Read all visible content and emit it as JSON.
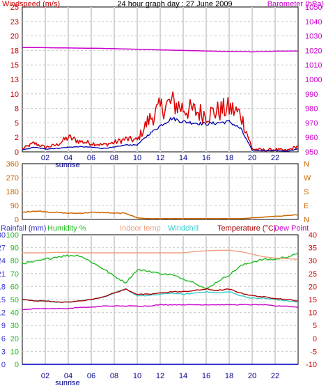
{
  "header": {
    "title": "24 hour graph day : 27 June 2009",
    "left_title": "Windspeed (m/s)",
    "right_title": "Barometer (hPa)"
  },
  "x_axis": {
    "labels": [
      "02",
      "04",
      "06",
      "08",
      "10",
      "12",
      "14",
      "16",
      "18",
      "20",
      "22"
    ],
    "sunrise_label": "sunrise"
  },
  "colors": {
    "windspeed": "#dd0000",
    "wind_avg": "#0000aa",
    "barometer": "#cc00cc",
    "direction": "#cc6600",
    "rainfall": "#3333cc",
    "humidity": "#22bb22",
    "indoor_temp": "#f0a080",
    "windchill": "#33cccc",
    "temperature": "#aa0000",
    "dew_point": "#cc00cc"
  },
  "panels": {
    "wind": {
      "left_ticks": [
        "0",
        "2",
        "5",
        "8",
        "10",
        "13",
        "15",
        "18",
        "20",
        "23",
        "25"
      ],
      "right_ticks": [
        "950",
        "960",
        "970",
        "980",
        "990",
        "1000",
        "1010",
        "1020",
        "1030",
        "1040",
        "1050"
      ]
    },
    "direction": {
      "left_ticks": [
        "0",
        "90",
        "180",
        "270",
        "360"
      ],
      "right_ticks": [
        "N",
        "E",
        "S",
        "W",
        "N"
      ]
    },
    "temp": {
      "legend": {
        "rainfall": "Rainfall (mm)",
        "humidity": "Humidity %",
        "indoor": "Indoor temp",
        "windchill": "Windchill",
        "temperature": "Temperature (°C)",
        "dewpoint": "Dew Point"
      },
      "rain_ticks": [
        "0",
        "3",
        "6",
        "9",
        "12",
        "15",
        "18",
        "21",
        "24",
        "27",
        "30"
      ],
      "hum_ticks": [
        "0",
        "10",
        "20",
        "30",
        "40",
        "50",
        "60",
        "70",
        "80",
        "90",
        "100"
      ],
      "temp_ticks": [
        "-10",
        "-5",
        "0",
        "5",
        "10",
        "15",
        "20",
        "25",
        "30",
        "35",
        "40"
      ]
    }
  },
  "chart_data": [
    {
      "type": "line",
      "title": "24 hour graph day : 27 June 2009",
      "x": [
        0,
        1,
        2,
        3,
        4,
        5,
        6,
        7,
        8,
        9,
        10,
        11,
        12,
        13,
        14,
        15,
        16,
        17,
        18,
        19,
        20,
        21,
        22,
        23,
        24
      ],
      "ylabel": "Windspeed (m/s)",
      "ylabel_right": "Barometer (hPa)",
      "ylim": [
        0,
        25
      ],
      "ylim_right": [
        950,
        1050
      ],
      "series": [
        {
          "name": "Windspeed (m/s)",
          "axis": "left",
          "color": "#dd0000",
          "values": [
            0.5,
            1.5,
            0.8,
            1.2,
            2.5,
            1.8,
            1.5,
            1.2,
            1.6,
            2.2,
            2.0,
            5.5,
            7.5,
            8.5,
            7.5,
            7.0,
            6.5,
            7.0,
            7.5,
            6.5,
            0.5,
            0.3,
            0.4,
            0.2,
            1.0
          ]
        },
        {
          "name": "Windspeed average",
          "axis": "left",
          "color": "#0000aa",
          "values": [
            0.3,
            0.8,
            0.5,
            0.6,
            0.8,
            0.9,
            0.8,
            0.6,
            0.8,
            1.2,
            1.2,
            3.0,
            4.5,
            5.8,
            5.2,
            5.0,
            4.8,
            5.0,
            5.2,
            4.0,
            0.3,
            0.2,
            0.2,
            0.1,
            0.5
          ]
        },
        {
          "name": "Barometer (hPa)",
          "axis": "right",
          "color": "#cc00cc",
          "values": [
            1022.0,
            1022.0,
            1021.9,
            1021.8,
            1021.7,
            1021.6,
            1021.5,
            1021.4,
            1021.2,
            1021.0,
            1020.8,
            1020.6,
            1020.4,
            1020.2,
            1020.0,
            1019.8,
            1019.6,
            1019.4,
            1019.3,
            1019.2,
            1019.0,
            1019.2,
            1019.5,
            1019.5,
            1019.6
          ]
        }
      ]
    },
    {
      "type": "line",
      "x": [
        0,
        1,
        2,
        3,
        4,
        5,
        6,
        7,
        8,
        9,
        10,
        11,
        12,
        13,
        14,
        15,
        16,
        17,
        18,
        19,
        20,
        21,
        22,
        23,
        24
      ],
      "ylim": [
        0,
        360
      ],
      "series": [
        {
          "name": "Wind direction",
          "color": "#cc6600",
          "values": [
            45,
            55,
            50,
            45,
            40,
            40,
            45,
            45,
            40,
            40,
            10,
            5,
            5,
            5,
            5,
            5,
            5,
            5,
            5,
            5,
            10,
            15,
            20,
            25,
            30
          ]
        }
      ]
    },
    {
      "type": "line",
      "x": [
        0,
        1,
        2,
        3,
        4,
        5,
        6,
        7,
        8,
        9,
        10,
        11,
        12,
        13,
        14,
        15,
        16,
        17,
        18,
        19,
        20,
        21,
        22,
        23,
        24
      ],
      "ylabel": "Rainfall (mm)",
      "ylabel_right": "Temperature (°C)",
      "ylim": [
        0,
        30
      ],
      "ylim_right": [
        -10,
        40
      ],
      "series": [
        {
          "name": "Rainfall (mm)",
          "axis": "rain",
          "color": "#3333cc",
          "values": [
            0,
            0,
            0,
            0,
            0,
            0,
            0,
            0,
            0,
            0,
            0,
            0,
            0,
            0,
            0,
            0,
            0,
            0,
            0,
            0,
            0,
            0,
            0,
            0,
            0
          ]
        },
        {
          "name": "Humidity %",
          "axis": "humidity",
          "color": "#22bb22",
          "values": [
            78,
            79,
            81,
            83,
            84,
            84,
            79,
            74,
            68,
            63,
            73,
            72,
            70,
            69,
            66,
            63,
            58,
            64,
            69,
            76,
            79,
            81,
            81,
            83,
            85
          ]
        },
        {
          "name": "Indoor temp",
          "axis": "temp",
          "color": "#f0a080",
          "values": [
            33,
            33,
            33,
            33.2,
            33.2,
            33,
            33,
            33,
            33,
            33,
            33,
            33,
            33,
            33,
            33,
            33.5,
            33.8,
            34,
            34,
            33.5,
            32.5,
            31.5,
            31,
            30.8,
            30.5
          ]
        },
        {
          "name": "Windchill",
          "axis": "temp",
          "color": "#33cccc",
          "values": [
            15,
            14.5,
            14.5,
            14,
            14,
            14.5,
            15,
            16,
            17.5,
            19,
            16.5,
            16.5,
            17,
            17.5,
            17,
            17.5,
            18,
            17.5,
            18,
            16.5,
            15.5,
            15.5,
            15,
            14.5,
            14
          ]
        },
        {
          "name": "Temperature (°C)",
          "axis": "temp",
          "color": "#aa0000",
          "values": [
            15,
            14.5,
            14.5,
            14,
            14,
            14.5,
            15,
            16,
            17.5,
            19,
            17,
            17,
            17.5,
            18,
            18,
            18.5,
            19,
            18.5,
            19,
            17.5,
            16.5,
            16,
            15.5,
            15,
            14.5
          ]
        },
        {
          "name": "Dew Point",
          "axis": "temp",
          "color": "#cc00cc",
          "values": [
            11,
            11.5,
            11.5,
            11.5,
            11.5,
            12,
            12,
            12.5,
            12.5,
            12.5,
            12.5,
            12.5,
            13,
            13,
            13,
            13,
            13,
            13,
            13,
            13,
            13,
            13,
            12.5,
            12.5,
            12
          ]
        }
      ]
    }
  ]
}
